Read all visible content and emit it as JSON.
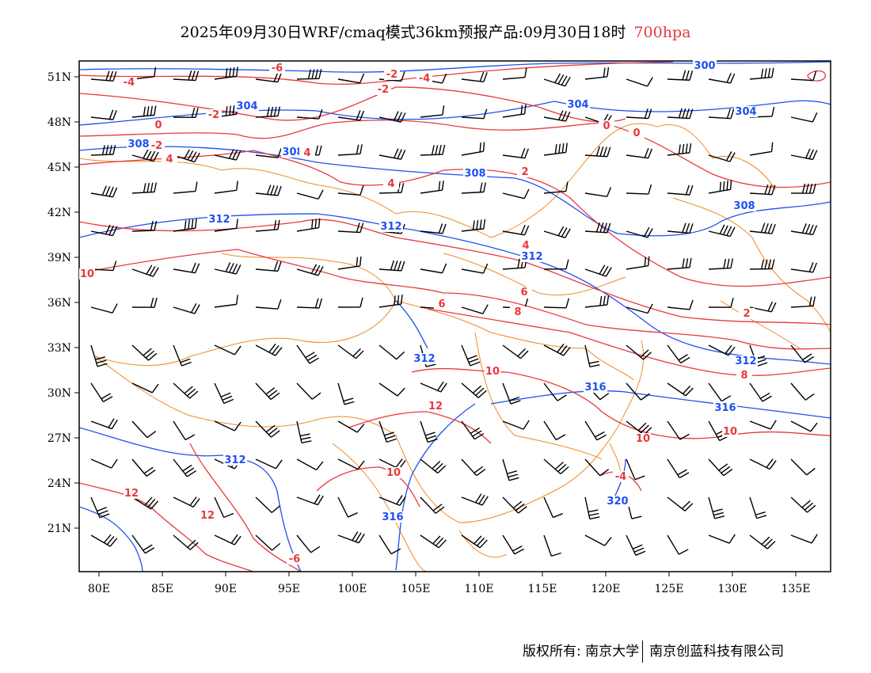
{
  "title": {
    "main": "2025年09月30日WRF/cmaq模式36km预报产品:09月30日18时",
    "level": "700hpa"
  },
  "footer": {
    "left": "版权所有: 南京大学",
    "right": "南京创蓝科技有限公司"
  },
  "axes": {
    "lon_ticks": [
      "80E",
      "85E",
      "90E",
      "95E",
      "100E",
      "105E",
      "110E",
      "115E",
      "120E",
      "125E",
      "130E",
      "135E"
    ],
    "lat_ticks": [
      "51N",
      "48N",
      "45N",
      "42N",
      "39N",
      "36N",
      "33N",
      "30N",
      "27N",
      "24N",
      "21N"
    ]
  },
  "colors": {
    "height": "#1f4ff0",
    "temperature": "#e8393c",
    "boundary": "#f08a24",
    "wind": "#000000"
  },
  "height_labels": [
    "300",
    "304",
    "304",
    "304",
    "308",
    "308",
    "308",
    "308",
    "312",
    "312",
    "312",
    "312",
    "312",
    "316",
    "316",
    "316",
    "320",
    "312"
  ],
  "temp_labels": [
    "-6",
    "-4",
    "-2",
    "-2",
    "-2",
    "0",
    "0",
    "0",
    "-2",
    "4",
    "4",
    "-4",
    "2",
    "2",
    "4",
    "6",
    "6",
    "8",
    "8",
    "10",
    "10",
    "10",
    "10",
    "12",
    "12",
    "12",
    "10",
    "-6",
    "-4",
    "4"
  ]
}
